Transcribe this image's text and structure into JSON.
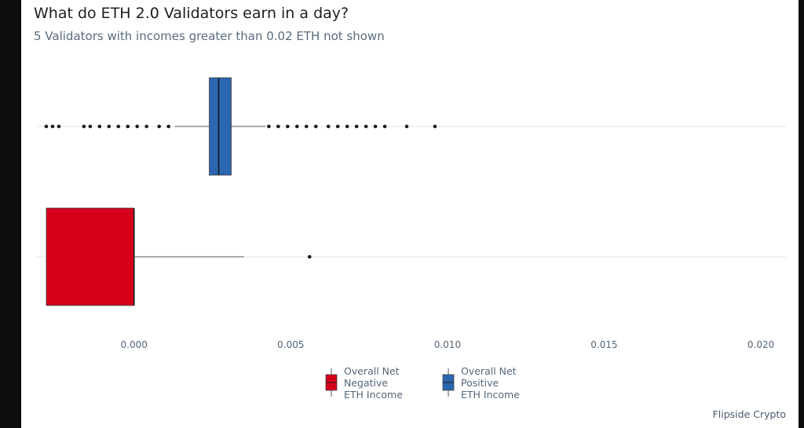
{
  "title": "What do ETH 2.0 Validators earn in a day?",
  "subtitle": "5 Validators with incomes greater than 0.02 ETH not shown",
  "caption": "Flipside Crypto",
  "colors": {
    "negative": "#d7001b",
    "positive": "#2b66b0",
    "whisker": "#555555",
    "gridline": "#e6e6e6",
    "outlier": "#1a1a1a"
  },
  "legend": [
    {
      "label": "Overall Net\nNegative\nETH Income",
      "color": "#d7001b",
      "icon": "boxplot-key-icon"
    },
    {
      "label": "Overall Net\nPositive\nETH Income",
      "color": "#2b66b0",
      "icon": "boxplot-key-icon"
    }
  ],
  "chart_data": {
    "type": "boxplot",
    "orientation": "horizontal",
    "xlim": [
      -0.0031,
      0.0208
    ],
    "x_ticks": [
      0.0,
      0.005,
      0.01,
      0.015,
      0.02
    ],
    "x_tick_labels": [
      "0.000",
      "0.005",
      "0.010",
      "0.015",
      "0.020"
    ],
    "grid": {
      "x": false,
      "y": true
    },
    "legend_position": "bottom",
    "series": [
      {
        "name": "Overall Net Positive ETH Income",
        "color": "#2b66b0",
        "q1": 0.0024,
        "median": 0.0027,
        "q3": 0.0031,
        "whisker_low": 0.0013,
        "whisker_high": 0.0042,
        "outliers": [
          -0.0028,
          -0.0026,
          -0.0024,
          -0.0016,
          -0.0014,
          -0.0011,
          -0.0008,
          -0.0005,
          -0.0002,
          0.0001,
          0.0004,
          0.0008,
          0.0011,
          0.0043,
          0.0046,
          0.0049,
          0.0052,
          0.0055,
          0.0058,
          0.0062,
          0.0065,
          0.0068,
          0.0071,
          0.0074,
          0.0077,
          0.008,
          0.0087,
          0.0096
        ]
      },
      {
        "name": "Overall Net Negative ETH Income",
        "color": "#d7001b",
        "q1": -0.0028,
        "median": 0.0,
        "q3": 0.0,
        "whisker_low": -0.0028,
        "whisker_high": 0.0035,
        "outliers": [
          0.0056
        ]
      }
    ]
  }
}
